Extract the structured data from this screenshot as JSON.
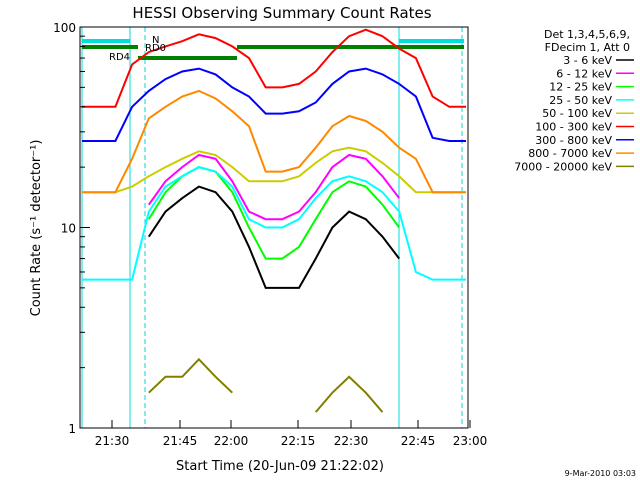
{
  "chart_data": {
    "type": "line",
    "title": "HESSI Observing Summary Count Rates",
    "xlabel": "Start Time (20-Jun-09 21:22:02)",
    "ylabel": "Count Rate (s⁻¹ detector⁻¹)",
    "ylim": [
      1,
      100
    ],
    "y_scale": "log",
    "grid": false,
    "legend_position": "right",
    "x_ticks": [
      "21:30",
      "21:45",
      "22:00",
      "22:15",
      "22:30",
      "22:45",
      "23:00"
    ],
    "y_ticks": [
      "1",
      "10",
      "100"
    ],
    "legend_header": [
      "Det 1,3,4,5,6,9,",
      "FDecim 1, Att 0"
    ],
    "footer_date": "9-Mar-2010 03:03",
    "annotations": [
      "N",
      "RD0",
      "RD4"
    ],
    "series": [
      {
        "name": "3 - 6 keV",
        "color": "#000000",
        "values": [
          null,
          null,
          null,
          null,
          9,
          12,
          14,
          16,
          15,
          12,
          8,
          5,
          5,
          5,
          7,
          10,
          12,
          11,
          9,
          7,
          null,
          null,
          null,
          null
        ]
      },
      {
        "name": "6 - 12 keV",
        "color": "#ff00ff",
        "values": [
          null,
          null,
          null,
          null,
          13,
          17,
          20,
          23,
          22,
          17,
          12,
          11,
          11,
          12,
          15,
          20,
          23,
          22,
          18,
          14,
          null,
          null,
          null,
          null
        ]
      },
      {
        "name": "12 - 25 keV",
        "color": "#00ff00",
        "values": [
          null,
          null,
          null,
          null,
          11,
          15,
          18,
          20,
          19,
          15,
          10,
          7,
          7,
          8,
          11,
          15,
          17,
          16,
          13,
          10,
          null,
          null,
          null,
          null
        ]
      },
      {
        "name": "25 - 50 keV",
        "color": "#00ffff",
        "values": [
          5.5,
          5.5,
          5.5,
          5.5,
          12,
          16,
          18,
          20,
          19,
          16,
          11,
          10,
          10,
          11,
          14,
          17,
          18,
          17,
          15,
          12,
          6,
          5.5,
          5.5,
          5.5
        ]
      },
      {
        "name": "50 - 100 keV",
        "color": "#cccc00",
        "values": [
          15,
          15,
          15,
          16,
          18,
          20,
          22,
          24,
          23,
          20,
          17,
          17,
          17,
          18,
          21,
          24,
          25,
          24,
          21,
          18,
          15,
          15,
          15,
          15
        ]
      },
      {
        "name": "100 - 300 keV",
        "color": "#ff0000",
        "values": [
          40,
          40,
          40,
          65,
          75,
          80,
          85,
          92,
          88,
          80,
          70,
          50,
          50,
          52,
          60,
          75,
          90,
          97,
          90,
          78,
          70,
          45,
          40,
          40
        ]
      },
      {
        "name": "300 - 800 keV",
        "color": "#0000ff",
        "values": [
          27,
          27,
          27,
          40,
          48,
          55,
          60,
          62,
          58,
          50,
          45,
          37,
          37,
          38,
          42,
          52,
          60,
          62,
          58,
          52,
          45,
          28,
          27,
          27
        ]
      },
      {
        "name": "800 - 7000 keV",
        "color": "#ff8800",
        "values": [
          15,
          15,
          15,
          22,
          35,
          40,
          45,
          48,
          44,
          38,
          32,
          19,
          19,
          20,
          25,
          32,
          36,
          34,
          30,
          25,
          22,
          15,
          15,
          15
        ]
      },
      {
        "name": "7000 - 20000 keV",
        "color": "#808000",
        "values": [
          null,
          null,
          null,
          null,
          1.5,
          1.8,
          1.8,
          2.2,
          1.8,
          1.5,
          null,
          null,
          null,
          null,
          1.2,
          1.5,
          1.8,
          1.5,
          1.2,
          null,
          null,
          null,
          null,
          null
        ]
      }
    ]
  }
}
